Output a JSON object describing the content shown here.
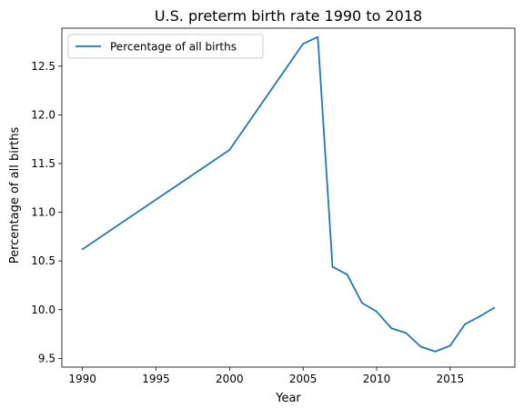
{
  "chart_data": {
    "type": "line",
    "title": "U.S. preterm birth rate 1990 to 2018",
    "xlabel": "Year",
    "ylabel": "Percentage of all births",
    "xlim": [
      1988.6,
      2019.4
    ],
    "ylim": [
      9.41,
      12.89
    ],
    "xticks": [
      1990,
      1995,
      2000,
      2005,
      2010,
      2015
    ],
    "yticks": [
      9.5,
      10.0,
      10.5,
      11.0,
      11.5,
      12.0,
      12.5
    ],
    "ytick_labels": [
      "9.5",
      "10.0",
      "10.5",
      "11.0",
      "11.5",
      "12.0",
      "12.5"
    ],
    "grid": false,
    "legend_position": "top-left",
    "series": [
      {
        "name": "Percentage of all births",
        "color": "#1f77b4",
        "x": [
          1990,
          2000,
          2005,
          2006,
          2007,
          2008,
          2009,
          2010,
          2011,
          2012,
          2013,
          2014,
          2015,
          2016,
          2017,
          2018
        ],
        "y": [
          10.62,
          11.64,
          12.73,
          12.8,
          10.44,
          10.36,
          10.07,
          9.98,
          9.81,
          9.76,
          9.62,
          9.57,
          9.63,
          9.85,
          9.93,
          10.02
        ]
      }
    ]
  }
}
